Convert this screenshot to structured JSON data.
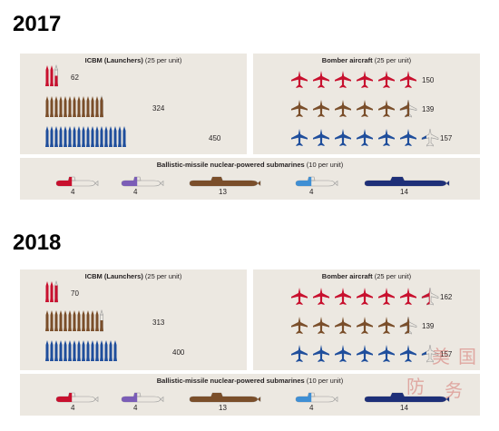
{
  "colors": {
    "red": "#c8102e",
    "brown": "#7a4e2a",
    "blue": "#1f4e9c",
    "purple": "#7b5db7",
    "lightblue": "#3f8fd4",
    "navy": "#1e2f78",
    "outline": "#9a9a9a",
    "panel": "#ece8e1"
  },
  "years": [
    {
      "label": "2017",
      "icbm": {
        "title_bold": "ICBM (Launchers)",
        "title_rest": " (25 per unit)",
        "rows": [
          {
            "country": "red",
            "units": 2,
            "partial": 0.5,
            "label": "62"
          },
          {
            "country": "brown",
            "units": 12,
            "partial": 0.96,
            "label": "324"
          },
          {
            "country": "blue",
            "units": 18,
            "partial": 0,
            "label": "450"
          }
        ]
      },
      "bomber": {
        "title_bold": "Bomber aircraft",
        "title_rest": " (25 per unit)",
        "rows": [
          {
            "country": "red",
            "units": 6,
            "partial": 0,
            "label": "150"
          },
          {
            "country": "brown",
            "units": 5,
            "partial": 0.56,
            "label": "139"
          },
          {
            "country": "blue",
            "units": 6,
            "partial": 0.28,
            "label": "157"
          }
        ]
      },
      "subs": {
        "title_bold": "Ballistic-missile nuclear-powered submarines",
        "title_rest": " (10 per unit)",
        "items": [
          {
            "country": "red",
            "label": "4",
            "fill": 0.4
          },
          {
            "country": "purple",
            "label": "4",
            "fill": 0.4
          },
          {
            "country": "brown",
            "label": "13",
            "fill": 1.0
          },
          {
            "country": "lightblue",
            "label": "4",
            "fill": 0.4
          },
          {
            "country": "navy",
            "label": "14",
            "fill": 1.0
          }
        ]
      }
    },
    {
      "label": "2018",
      "icbm": {
        "title_bold": "ICBM (Launchers)",
        "title_rest": " (25 per unit)",
        "rows": [
          {
            "country": "red",
            "units": 2,
            "partial": 0.8,
            "label": "70"
          },
          {
            "country": "brown",
            "units": 12,
            "partial": 0.52,
            "label": "313"
          },
          {
            "country": "blue",
            "units": 16,
            "partial": 0,
            "label": "400"
          }
        ]
      },
      "bomber": {
        "title_bold": "Bomber aircraft",
        "title_rest": " (25 per unit)",
        "rows": [
          {
            "country": "red",
            "units": 6,
            "partial": 0.48,
            "label": "162"
          },
          {
            "country": "brown",
            "units": 5,
            "partial": 0.56,
            "label": "139"
          },
          {
            "country": "blue",
            "units": 6,
            "partial": 0.28,
            "label": "157"
          }
        ]
      },
      "subs": {
        "title_bold": "Ballistic-missile nuclear-powered submarines",
        "title_rest": " (10 per unit)",
        "items": [
          {
            "country": "red",
            "label": "4",
            "fill": 0.4
          },
          {
            "country": "purple",
            "label": "4",
            "fill": 0.4
          },
          {
            "country": "brown",
            "label": "13",
            "fill": 1.0
          },
          {
            "country": "lightblue",
            "label": "4",
            "fill": 0.4
          },
          {
            "country": "navy",
            "label": "14",
            "fill": 1.0
          }
        ]
      }
    }
  ],
  "watermark": {
    "chars": [
      "美",
      "国",
      "防",
      "务"
    ]
  }
}
